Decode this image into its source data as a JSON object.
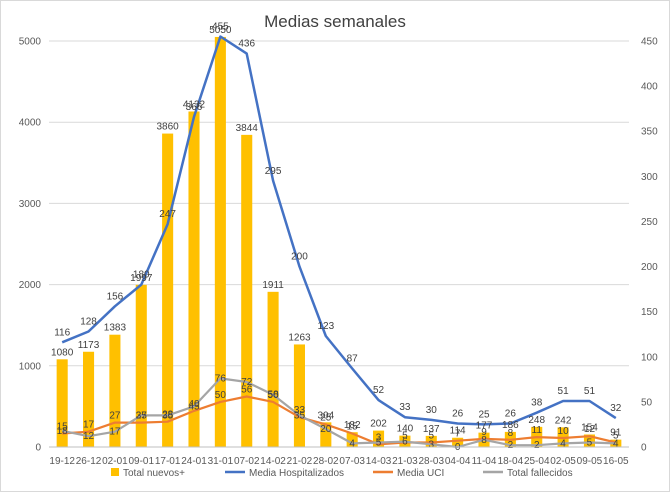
{
  "chart_data": {
    "type": "bar",
    "title": "Medias semanales",
    "categories": [
      "19-12",
      "26-12",
      "02-01",
      "09-01",
      "17-01",
      "24-01",
      "31-01",
      "07-02",
      "14-02",
      "21-02",
      "28-02",
      "07-03",
      "14-03",
      "21-03",
      "28-03",
      "04-04",
      "11-04",
      "18-04",
      "25-04",
      "02-05",
      "09-05",
      "16-05"
    ],
    "ylim": [
      0,
      5000
    ],
    "y_ticks": [
      "0",
      "1000",
      "2000",
      "3000",
      "4000",
      "5000"
    ],
    "y2lim": [
      0,
      450
    ],
    "y2_ticks": [
      "0",
      "50",
      "100",
      "150",
      "200",
      "250",
      "300",
      "350",
      "400",
      "450"
    ],
    "grid": true,
    "legend_position": "bottom",
    "series": [
      {
        "name": "Total nuevos+",
        "type": "bar",
        "axis": "left",
        "color": "#FFC000",
        "values": [
          1080,
          1173,
          1383,
          1997,
          3860,
          4132,
          5050,
          3844,
          1911,
          1263,
          304,
          182,
          202,
          140,
          137,
          114,
          177,
          186,
          248,
          242,
          154,
          91
        ]
      },
      {
        "name": "Media Hospitalizados",
        "type": "line",
        "axis": "right",
        "color": "#4472C4",
        "values": [
          116,
          128,
          156,
          180,
          247,
          366,
          455,
          436,
          295,
          200,
          123,
          87,
          52,
          33,
          30,
          26,
          25,
          26,
          38,
          51,
          51,
          32
        ]
      },
      {
        "name": "Media UCI",
        "type": "line",
        "axis": "right",
        "color": "#ED7D31",
        "values": [
          15,
          17,
          27,
          27,
          28,
          40,
          50,
          56,
          50,
          33,
          25,
          15,
          3,
          5,
          5,
          7,
          9,
          8,
          11,
          10,
          12,
          5
        ]
      },
      {
        "name": "Total fallecidos",
        "type": "line",
        "axis": "right",
        "color": "#A5A5A5",
        "values": [
          18,
          12,
          17,
          35,
          35,
          45,
          76,
          72,
          58,
          35,
          20,
          4,
          5,
          6,
          3,
          0,
          8,
          2,
          2,
          4,
          5,
          4
        ]
      }
    ]
  }
}
